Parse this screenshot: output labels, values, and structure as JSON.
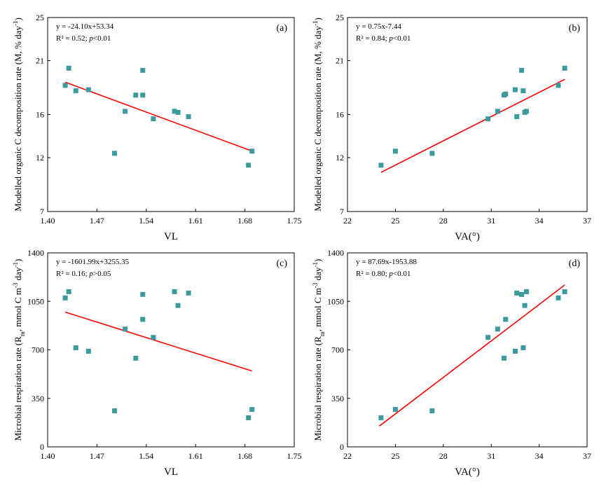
{
  "colors": {
    "marker": "#3a9a9e",
    "fit": "#ff0000",
    "axis": "#000000"
  },
  "chart_data": [
    {
      "type": "scatter",
      "panel_label": "(a)",
      "equation": "y = -24.10x+53.34",
      "r2_text": "R² = 0.52; ",
      "p_symbol": "p",
      "p_text": "<0.01",
      "xlabel": "VL",
      "ylabel_main": "Modelled organic C decomposition rate (M, % day",
      "ylabel_sup": "-1",
      "ylabel_end": ")",
      "xlim": [
        1.4,
        1.75
      ],
      "ylim": [
        7,
        25
      ],
      "xticks": [
        "1.40",
        "1.47",
        "1.54",
        "1.61",
        "1.68",
        "1.75"
      ],
      "yticks": [
        "7",
        "12",
        "16",
        "21",
        "25"
      ],
      "ytick_values": [
        7,
        12,
        16,
        21,
        25
      ],
      "fit": {
        "slope": -24.1,
        "intercept": 53.34,
        "x_range": [
          1.425,
          1.69
        ]
      },
      "points": [
        {
          "x": 1.425,
          "y": 18.7
        },
        {
          "x": 1.43,
          "y": 20.3
        },
        {
          "x": 1.44,
          "y": 18.2
        },
        {
          "x": 1.458,
          "y": 18.3
        },
        {
          "x": 1.495,
          "y": 12.4
        },
        {
          "x": 1.51,
          "y": 16.3
        },
        {
          "x": 1.525,
          "y": 17.8
        },
        {
          "x": 1.535,
          "y": 20.1
        },
        {
          "x": 1.535,
          "y": 17.8
        },
        {
          "x": 1.55,
          "y": 15.6
        },
        {
          "x": 1.58,
          "y": 16.3
        },
        {
          "x": 1.585,
          "y": 16.2
        },
        {
          "x": 1.6,
          "y": 15.8
        },
        {
          "x": 1.685,
          "y": 11.3
        },
        {
          "x": 1.69,
          "y": 12.6
        }
      ]
    },
    {
      "type": "scatter",
      "panel_label": "(b)",
      "equation": "y = 0.75x-7.44",
      "r2_text": "R² = 0.84; ",
      "p_symbol": "p",
      "p_text": "<0.01",
      "xlabel": "VA(°)",
      "ylabel_main": "Modelled organic C decomposition rate (M, % day",
      "ylabel_sup": "-1",
      "ylabel_end": ")",
      "xlim": [
        22,
        37
      ],
      "ylim": [
        7,
        25
      ],
      "xticks": [
        "22",
        "25",
        "28",
        "31",
        "34",
        "37"
      ],
      "yticks": [
        "7",
        "12",
        "16",
        "21",
        "25"
      ],
      "ytick_values": [
        7,
        12,
        16,
        21,
        25
      ],
      "fit": {
        "slope": 0.75,
        "intercept": -7.44,
        "x_range": [
          24.1,
          35.6
        ]
      },
      "points": [
        {
          "x": 24.1,
          "y": 11.3
        },
        {
          "x": 25.0,
          "y": 12.6
        },
        {
          "x": 27.3,
          "y": 12.4
        },
        {
          "x": 30.8,
          "y": 15.6
        },
        {
          "x": 31.4,
          "y": 16.3
        },
        {
          "x": 31.8,
          "y": 17.8
        },
        {
          "x": 31.9,
          "y": 17.9
        },
        {
          "x": 32.5,
          "y": 18.3
        },
        {
          "x": 32.6,
          "y": 15.8
        },
        {
          "x": 32.9,
          "y": 20.1
        },
        {
          "x": 33.0,
          "y": 18.2
        },
        {
          "x": 33.1,
          "y": 16.2
        },
        {
          "x": 33.2,
          "y": 16.3
        },
        {
          "x": 35.2,
          "y": 18.7
        },
        {
          "x": 35.6,
          "y": 20.3
        }
      ]
    },
    {
      "type": "scatter",
      "panel_label": "(c)",
      "equation": "y = -1601.99x+3255.35",
      "r2_text": "R² = 0.16; ",
      "p_symbol": "p",
      "p_text": ">0.05",
      "xlabel": "VL",
      "ylabel_main": "Microbial respiration rate (R",
      "ylabel_sub": "m",
      "ylabel_main2": ", mmol C m",
      "ylabel_sup": "-3",
      "ylabel_mid": " day",
      "ylabel_sup2": "-1",
      "ylabel_end": ")",
      "xlim": [
        1.4,
        1.75
      ],
      "ylim": [
        0,
        1400
      ],
      "xticks": [
        "1.40",
        "1.47",
        "1.54",
        "1.61",
        "1.68",
        "1.75"
      ],
      "yticks": [
        "0",
        "350",
        "700",
        "1050",
        "1400"
      ],
      "ytick_values": [
        0,
        350,
        700,
        1050,
        1400
      ],
      "fit": {
        "slope": -1601.99,
        "intercept": 3255.35,
        "x_range": [
          1.425,
          1.69
        ]
      },
      "points": [
        {
          "x": 1.425,
          "y": 1075
        },
        {
          "x": 1.43,
          "y": 1120
        },
        {
          "x": 1.44,
          "y": 715
        },
        {
          "x": 1.458,
          "y": 690
        },
        {
          "x": 1.495,
          "y": 260
        },
        {
          "x": 1.51,
          "y": 850
        },
        {
          "x": 1.525,
          "y": 640
        },
        {
          "x": 1.535,
          "y": 1100
        },
        {
          "x": 1.535,
          "y": 920
        },
        {
          "x": 1.55,
          "y": 790
        },
        {
          "x": 1.58,
          "y": 1120
        },
        {
          "x": 1.585,
          "y": 1020
        },
        {
          "x": 1.6,
          "y": 1110
        },
        {
          "x": 1.685,
          "y": 210
        },
        {
          "x": 1.69,
          "y": 270
        }
      ]
    },
    {
      "type": "scatter",
      "panel_label": "(d)",
      "equation": "y = 87.69x-1953.88",
      "r2_text": "R² = 0.80; ",
      "p_symbol": "p",
      "p_text": "<0.01",
      "xlabel": "VA(°)",
      "ylabel_main": "Microbial respiration rate (R",
      "ylabel_sub": "m",
      "ylabel_main2": ", mmol C m",
      "ylabel_sup": "-3",
      "ylabel_mid": " day",
      "ylabel_sup2": "-1",
      "ylabel_end": ")",
      "xlim": [
        22,
        37
      ],
      "ylim": [
        0,
        1400
      ],
      "xticks": [
        "22",
        "25",
        "28",
        "31",
        "34",
        "37"
      ],
      "yticks": [
        "0",
        "350",
        "700",
        "1050",
        "1400"
      ],
      "ytick_values": [
        0,
        350,
        700,
        1050,
        1400
      ],
      "fit": {
        "slope": 87.69,
        "intercept": -1953.88,
        "x_range": [
          24.0,
          35.6
        ]
      },
      "points": [
        {
          "x": 24.1,
          "y": 210
        },
        {
          "x": 25.0,
          "y": 270
        },
        {
          "x": 27.3,
          "y": 260
        },
        {
          "x": 30.8,
          "y": 790
        },
        {
          "x": 31.4,
          "y": 850
        },
        {
          "x": 31.8,
          "y": 640
        },
        {
          "x": 31.9,
          "y": 920
        },
        {
          "x": 32.5,
          "y": 690
        },
        {
          "x": 32.6,
          "y": 1110
        },
        {
          "x": 32.9,
          "y": 1100
        },
        {
          "x": 33.0,
          "y": 715
        },
        {
          "x": 33.1,
          "y": 1020
        },
        {
          "x": 33.2,
          "y": 1120
        },
        {
          "x": 35.2,
          "y": 1075
        },
        {
          "x": 35.6,
          "y": 1120
        }
      ]
    }
  ]
}
